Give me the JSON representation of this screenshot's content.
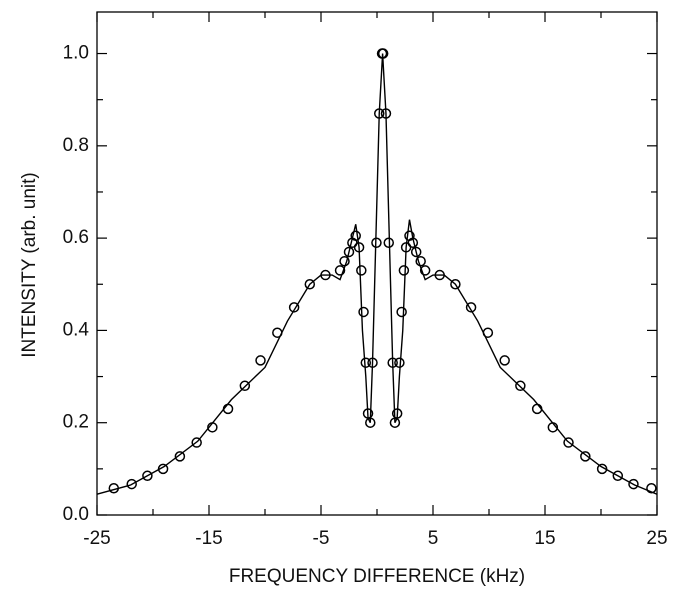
{
  "chart_data": {
    "type": "line",
    "xlabel": "FREQUENCY DIFFERENCE (kHz)",
    "ylabel": "INTENSITY (arb. unit)",
    "xlim": [
      -25,
      25
    ],
    "ylim": [
      0,
      1.09
    ],
    "xticks": [
      -25,
      -15,
      -5,
      5,
      15,
      25
    ],
    "xminorticks": [
      -20,
      -10,
      0,
      10,
      20
    ],
    "yticks": [
      {
        "value": 0,
        "label": "0.0"
      },
      {
        "value": 0.2,
        "label": "0.2"
      },
      {
        "value": 0.4,
        "label": "0.4"
      },
      {
        "value": 0.6,
        "label": "0.6"
      },
      {
        "value": 0.8,
        "label": "0.8"
      },
      {
        "value": 1.0,
        "label": "1.0"
      }
    ],
    "yminorticks": [
      0.1,
      0.3,
      0.5,
      0.7,
      0.9
    ],
    "color": "#000000",
    "series": [
      {
        "type": "line",
        "x": [
          -25,
          -22,
          -19,
          -16,
          -13,
          -10,
          -8,
          -6,
          -5,
          -4,
          -3.3,
          -2.7,
          -2.2,
          -1.9,
          -1.6,
          -1.3,
          -1.0,
          -0.8,
          -0.6,
          -0.4,
          -0.1,
          0.2,
          0.5,
          0.8,
          1.1,
          1.4,
          1.6,
          1.8,
          2.0,
          2.3,
          2.6,
          2.9,
          3.2,
          3.7,
          4.3,
          5,
          6,
          7,
          9,
          11,
          14,
          17,
          20,
          23,
          25
        ],
        "values": [
          0.045,
          0.065,
          0.105,
          0.16,
          0.25,
          0.32,
          0.42,
          0.5,
          0.52,
          0.52,
          0.51,
          0.55,
          0.6,
          0.63,
          0.58,
          0.4,
          0.3,
          0.21,
          0.2,
          0.33,
          0.6,
          0.87,
          1.0,
          0.87,
          0.6,
          0.33,
          0.2,
          0.21,
          0.3,
          0.4,
          0.58,
          0.64,
          0.6,
          0.55,
          0.51,
          0.52,
          0.52,
          0.5,
          0.42,
          0.32,
          0.25,
          0.16,
          0.105,
          0.065,
          0.045
        ]
      },
      {
        "type": "scatter",
        "x": [
          -23.5,
          -21.9,
          -20.5,
          -19.1,
          -17.6,
          -16.1,
          -14.7,
          -13.3,
          -11.8,
          -10.4,
          -8.9,
          -7.4,
          -6.0,
          -4.6,
          -3.3,
          -2.9,
          -2.5,
          -2.2,
          -1.9,
          -1.6,
          -1.4,
          -1.2,
          -1.0,
          -0.8,
          -0.6,
          -0.4,
          -0.05,
          0.2,
          0.45,
          0.55,
          0.8,
          1.05,
          1.4,
          1.6,
          1.8,
          2.0,
          2.2,
          2.4,
          2.6,
          2.9,
          3.2,
          3.5,
          3.9,
          4.3,
          5.6,
          7.0,
          8.4,
          9.9,
          11.4,
          12.8,
          14.3,
          15.7,
          17.1,
          18.6,
          20.1,
          21.5,
          22.9,
          24.5
        ],
        "values": [
          0.058,
          0.067,
          0.085,
          0.1,
          0.127,
          0.157,
          0.19,
          0.23,
          0.28,
          0.335,
          0.395,
          0.45,
          0.5,
          0.52,
          0.53,
          0.55,
          0.57,
          0.59,
          0.605,
          0.58,
          0.53,
          0.44,
          0.33,
          0.22,
          0.2,
          0.33,
          0.59,
          0.87,
          1.0,
          1.0,
          0.87,
          0.59,
          0.33,
          0.2,
          0.22,
          0.33,
          0.44,
          0.53,
          0.58,
          0.605,
          0.59,
          0.57,
          0.55,
          0.53,
          0.52,
          0.5,
          0.45,
          0.395,
          0.335,
          0.28,
          0.23,
          0.19,
          0.157,
          0.127,
          0.1,
          0.085,
          0.067,
          0.058
        ]
      }
    ]
  }
}
